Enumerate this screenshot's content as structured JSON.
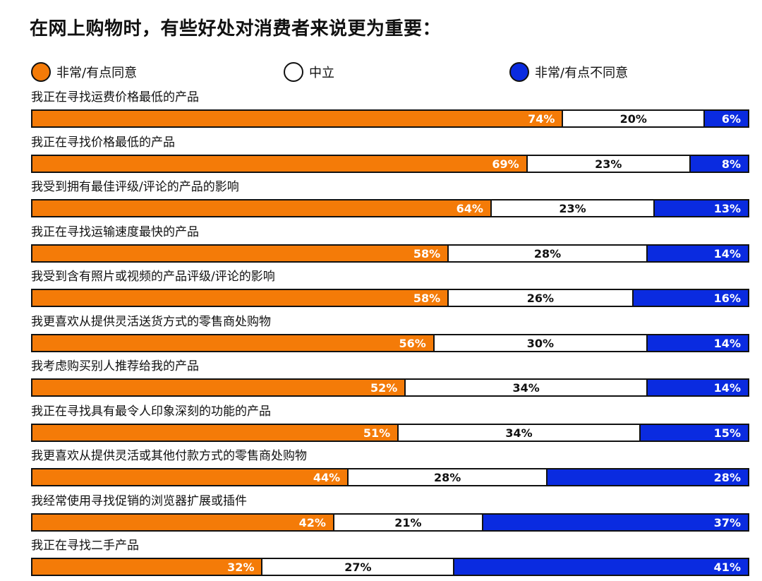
{
  "chart_data": {
    "type": "bar",
    "title": "在网上购物时，有些好处对消费者来说更为重要：",
    "stacked": "100%",
    "orientation": "horizontal",
    "legend_position": "top",
    "series": [
      {
        "name": "非常/有点同意",
        "color": "#F47B08",
        "values": [
          74,
          69,
          64,
          58,
          58,
          56,
          52,
          51,
          44,
          42,
          32
        ]
      },
      {
        "name": "中立",
        "color": "#FFFFFF",
        "values": [
          20,
          23,
          23,
          28,
          26,
          30,
          34,
          34,
          28,
          21,
          27
        ]
      },
      {
        "name": "非常/有点不同意",
        "color": "#0A2BE0",
        "values": [
          6,
          8,
          13,
          14,
          16,
          14,
          14,
          15,
          28,
          37,
          41
        ]
      }
    ],
    "categories": [
      "我正在寻找运费价格最低的产品",
      "我正在寻找价格最低的产品",
      "我受到拥有最佳评级/评论的产品的影响",
      "我正在寻找运输速度最快的产品",
      "我受到含有照片或视频的产品评级/评论的影响",
      "我更喜欢从提供灵活送货方式的零售商处购物",
      "我考虑购买别人推荐给我的产品",
      "我正在寻找具有最令人印象深刻的功能的产品",
      "我更喜欢从提供灵活或其他付款方式的零售商处购物",
      "我经常使用寻找促销的浏览器扩展或插件",
      "我正在寻找二手产品"
    ],
    "value_suffix": "%"
  }
}
